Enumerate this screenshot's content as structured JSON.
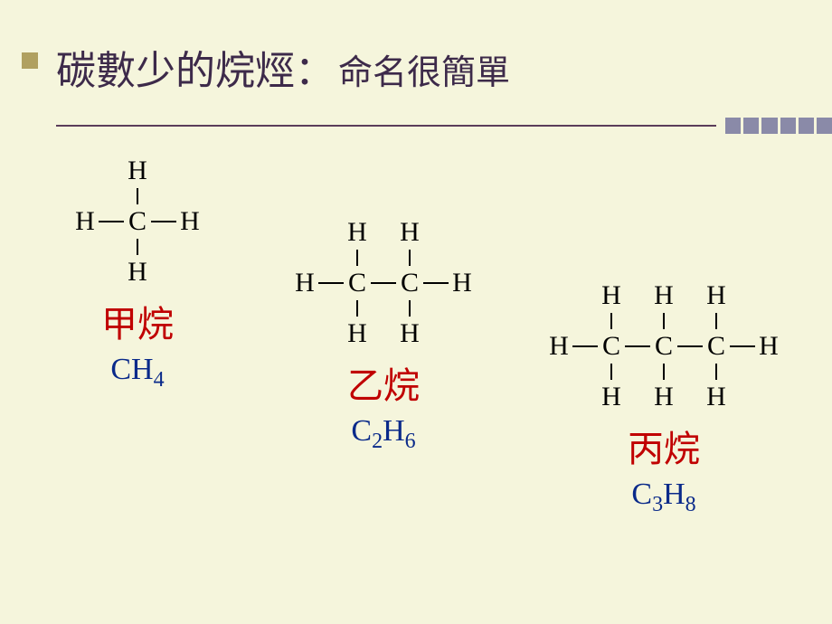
{
  "slide": {
    "background_color": "#f5f5dc",
    "title_main": "碳數少的烷烴：",
    "title_sub": "命名很簡單",
    "title_color": "#3d2a4a",
    "title_main_fontsize": 44,
    "title_sub_fontsize": 38,
    "divider_color": "#5a3d5a",
    "accent_color": "#8a8aa8",
    "bullet_color": "#b0a060"
  },
  "molecules": {
    "methane": {
      "name": "甲烷",
      "formula_html": "CH<sub>4</sub>",
      "carbons": 1,
      "hydrogens": 4,
      "name_color": "#c00000",
      "formula_color": "#0a2a8a",
      "atom_labels": {
        "C": "C",
        "H": "H"
      }
    },
    "ethane": {
      "name": "乙烷",
      "formula_html": "C<sub>2</sub>H<sub>6</sub>",
      "carbons": 2,
      "hydrogens": 6,
      "name_color": "#c00000",
      "formula_color": "#0a2a8a",
      "atom_labels": {
        "C": "C",
        "H": "H"
      }
    },
    "propane": {
      "name": "丙烷",
      "formula_html": "C<sub>3</sub>H<sub>8</sub>",
      "carbons": 3,
      "hydrogens": 8,
      "name_color": "#c00000",
      "formula_color": "#0a2a8a",
      "atom_labels": {
        "C": "C",
        "H": "H"
      }
    }
  },
  "style": {
    "atom_fontsize": 30,
    "name_fontsize": 40,
    "formula_fontsize": 34,
    "bond_color": "#000000",
    "atom_color": "#000000"
  }
}
